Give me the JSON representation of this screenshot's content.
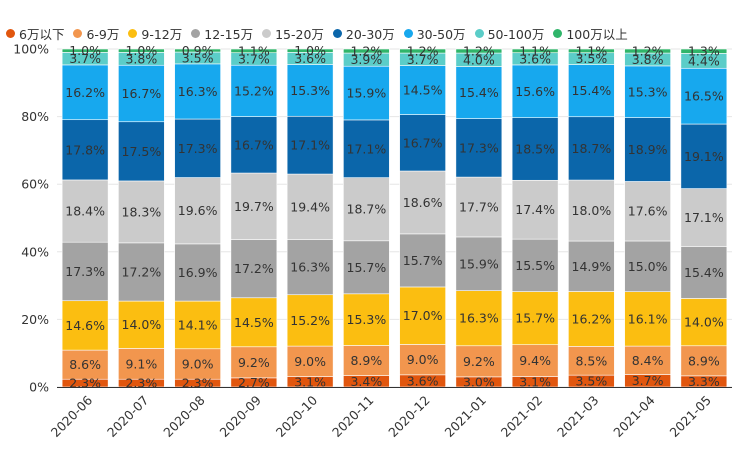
{
  "chart_data": {
    "type": "bar",
    "stacked": true,
    "percent": true,
    "categories": [
      "2020-06",
      "2020-07",
      "2020-08",
      "2020-09",
      "2020-10",
      "2020-11",
      "2020-12",
      "2021-01",
      "2021-02",
      "2021-03",
      "2021-04",
      "2021-05"
    ],
    "ylim": [
      0,
      100
    ],
    "y_ticks": [
      "0%",
      "20%",
      "40%",
      "60%",
      "80%",
      "100%"
    ],
    "legend_position": "top",
    "series": [
      {
        "name": "6万以下",
        "color": "#e1560e",
        "values": [
          2.3,
          2.3,
          2.3,
          2.7,
          3.1,
          3.4,
          3.6,
          3.0,
          3.1,
          3.5,
          3.7,
          3.3
        ]
      },
      {
        "name": "6-9万",
        "color": "#f2964e",
        "values": [
          8.6,
          9.1,
          9.0,
          9.2,
          9.0,
          8.9,
          9.0,
          9.2,
          9.4,
          8.5,
          8.4,
          8.9
        ]
      },
      {
        "name": "9-12万",
        "color": "#fbbe11",
        "values": [
          14.6,
          14.0,
          14.1,
          14.5,
          15.2,
          15.3,
          17.0,
          16.3,
          15.7,
          16.2,
          16.1,
          14.0
        ]
      },
      {
        "name": "12-15万",
        "color": "#a3a3a3",
        "values": [
          17.3,
          17.2,
          16.9,
          17.2,
          16.3,
          15.7,
          15.7,
          15.9,
          15.5,
          14.9,
          15.0,
          15.4
        ]
      },
      {
        "name": "15-20万",
        "color": "#cbcbcb",
        "values": [
          18.4,
          18.3,
          19.6,
          19.7,
          19.4,
          18.7,
          18.6,
          17.7,
          17.4,
          18.0,
          17.6,
          17.1
        ]
      },
      {
        "name": "20-30万",
        "color": "#0b66aa",
        "values": [
          17.8,
          17.5,
          17.3,
          16.7,
          17.1,
          17.1,
          16.7,
          17.3,
          18.5,
          18.7,
          18.9,
          19.1
        ]
      },
      {
        "name": "30-50万",
        "color": "#17a8ee",
        "values": [
          16.2,
          16.7,
          16.3,
          15.2,
          15.3,
          15.9,
          14.5,
          15.4,
          15.6,
          15.4,
          15.3,
          16.5
        ]
      },
      {
        "name": "50-100万",
        "color": "#5bcdc8",
        "values": [
          3.7,
          3.8,
          3.5,
          3.7,
          3.6,
          3.9,
          3.7,
          4.0,
          3.6,
          3.5,
          3.8,
          4.4
        ]
      },
      {
        "name": "100万以上",
        "color": "#30b56a",
        "values": [
          1.0,
          1.0,
          0.9,
          1.1,
          1.0,
          1.2,
          1.2,
          1.2,
          1.1,
          1.1,
          1.2,
          1.3
        ]
      }
    ]
  }
}
